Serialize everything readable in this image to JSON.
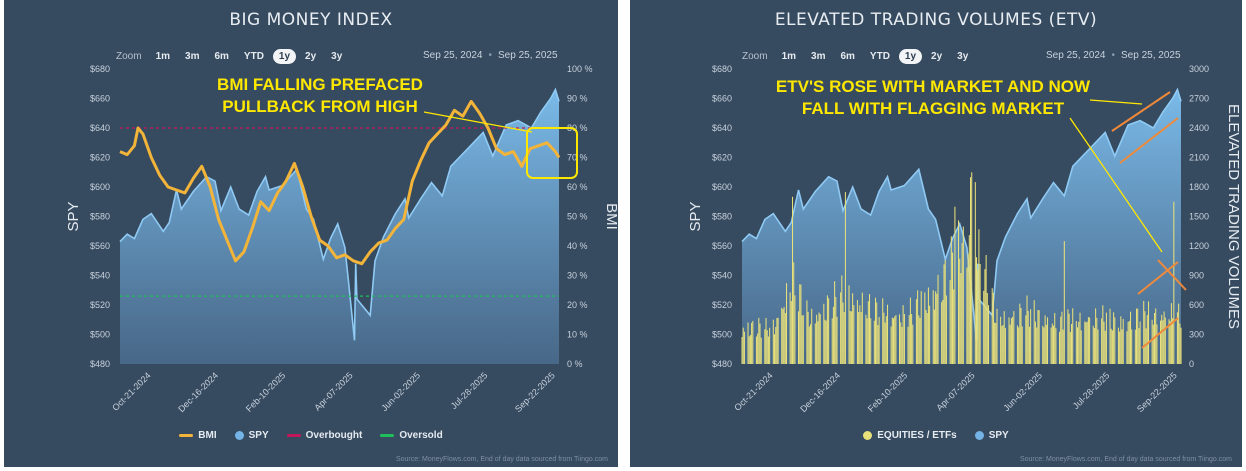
{
  "left": {
    "title": "BIG MONEY INDEX",
    "zoom": {
      "label": "Zoom",
      "buttons": [
        "1m",
        "3m",
        "6m",
        "YTD",
        "1y",
        "2y",
        "3y"
      ],
      "active": "1y"
    },
    "range": {
      "from": "Sep 25, 2024",
      "to": "Sep 25, 2025"
    },
    "annotation": {
      "line1": "BMI FALLING PREFACED",
      "line2": "PULLBACK FROM HIGH"
    },
    "legend": [
      {
        "label": "BMI",
        "color": "#f3b43a",
        "shape": "line"
      },
      {
        "label": "SPY",
        "color": "#74b3e6",
        "shape": "dot"
      },
      {
        "label": "Overbought",
        "color": "#c2185b",
        "shape": "line"
      },
      {
        "label": "Oversold",
        "color": "#1fbf5a",
        "shape": "line"
      }
    ],
    "source": "Source: MoneyFlows.com, End of day data sourced from Tiingo.com"
  },
  "right": {
    "title": "ELEVATED TRADING VOLUMES (ETV)",
    "zoom": {
      "label": "Zoom",
      "buttons": [
        "1m",
        "3m",
        "6m",
        "YTD",
        "1y",
        "2y",
        "3y"
      ],
      "active": "1y"
    },
    "range": {
      "from": "Sep 25, 2024",
      "to": "Sep 25, 2025"
    },
    "annotation": {
      "line1": "ETV'S ROSE WITH MARKET AND NOW",
      "line2": "FALL WITH FLAGGING MARKET"
    },
    "legend": [
      {
        "label": "EQUITIES / ETFs",
        "color": "#e8e07a",
        "shape": "dot"
      },
      {
        "label": "SPY",
        "color": "#74b3e6",
        "shape": "dot"
      }
    ],
    "source": "Source: MoneyFlows.com, End of day data sourced from Tiingo.com"
  },
  "chart_data": [
    {
      "type": "line",
      "title": "BIG MONEY INDEX",
      "ylabel": "SPY",
      "y2label": "BMI",
      "ylim": [
        480,
        680
      ],
      "yticks": [
        "$480",
        "$500",
        "$520",
        "$540",
        "$560",
        "$580",
        "$600",
        "$620",
        "$640",
        "$660",
        "$680"
      ],
      "y2lim": [
        0,
        100
      ],
      "y2ticks": [
        "0 %",
        "10 %",
        "20 %",
        "30 %",
        "40 %",
        "50 %",
        "60 %",
        "70 %",
        "80 %",
        "90 %",
        "100 %"
      ],
      "xtick_labels": [
        "Oct-21-2024",
        "Dec-16-2024",
        "Feb-10-2025",
        "Apr-07-2025",
        "Jun-02-2025",
        "Jul-28-2025",
        "Sep-22-2025"
      ],
      "xtick_dates": [
        "2024-10-21",
        "2024-12-16",
        "2025-02-10",
        "2025-04-07",
        "2025-06-02",
        "2025-07-28",
        "2025-09-22"
      ],
      "x_range": [
        "2024-09-25",
        "2025-09-25"
      ],
      "overbought": 80,
      "oversold": 23,
      "series": [
        {
          "name": "SPY",
          "axis": "left",
          "kind": "area",
          "points": [
            [
              "2024-09-25",
              563
            ],
            [
              "2024-10-01",
              568
            ],
            [
              "2024-10-07",
              565
            ],
            [
              "2024-10-14",
              578
            ],
            [
              "2024-10-21",
              582
            ],
            [
              "2024-10-31",
              570
            ],
            [
              "2024-11-05",
              576
            ],
            [
              "2024-11-11",
              598
            ],
            [
              "2024-11-15",
              585
            ],
            [
              "2024-11-25",
              597
            ],
            [
              "2024-12-06",
              607
            ],
            [
              "2024-12-13",
              604
            ],
            [
              "2024-12-18",
              584
            ],
            [
              "2024-12-26",
              600
            ],
            [
              "2025-01-02",
              585
            ],
            [
              "2025-01-10",
              581
            ],
            [
              "2025-01-17",
              597
            ],
            [
              "2025-01-24",
              607
            ],
            [
              "2025-01-27",
              598
            ],
            [
              "2025-02-07",
              601
            ],
            [
              "2025-02-19",
              612
            ],
            [
              "2025-02-27",
              585
            ],
            [
              "2025-03-05",
              578
            ],
            [
              "2025-03-13",
              551
            ],
            [
              "2025-03-19",
              565
            ],
            [
              "2025-03-25",
              575
            ],
            [
              "2025-03-31",
              559
            ],
            [
              "2025-04-03",
              536
            ],
            [
              "2025-04-08",
              496
            ],
            [
              "2025-04-09",
              548
            ],
            [
              "2025-04-10",
              524
            ],
            [
              "2025-04-21",
              513
            ],
            [
              "2025-04-25",
              550
            ],
            [
              "2025-05-02",
              566
            ],
            [
              "2025-05-12",
              582
            ],
            [
              "2025-05-20",
              592
            ],
            [
              "2025-05-23",
              579
            ],
            [
              "2025-06-02",
              592
            ],
            [
              "2025-06-11",
              603
            ],
            [
              "2025-06-20",
              594
            ],
            [
              "2025-06-27",
              614
            ],
            [
              "2025-07-10",
              625
            ],
            [
              "2025-07-24",
              637
            ],
            [
              "2025-08-01",
              621
            ],
            [
              "2025-08-12",
              642
            ],
            [
              "2025-08-22",
              645
            ],
            [
              "2025-09-02",
              640
            ],
            [
              "2025-09-10",
              651
            ],
            [
              "2025-09-18",
              660
            ],
            [
              "2025-09-22",
              666
            ],
            [
              "2025-09-25",
              658
            ]
          ]
        },
        {
          "name": "BMI",
          "axis": "right",
          "kind": "line",
          "points": [
            [
              "2024-09-25",
              72
            ],
            [
              "2024-10-01",
              71
            ],
            [
              "2024-10-07",
              74
            ],
            [
              "2024-10-10",
              80
            ],
            [
              "2024-10-14",
              78
            ],
            [
              "2024-10-21",
              70
            ],
            [
              "2024-10-28",
              64
            ],
            [
              "2024-11-04",
              60
            ],
            [
              "2024-11-11",
              59
            ],
            [
              "2024-11-18",
              58
            ],
            [
              "2024-11-25",
              63
            ],
            [
              "2024-12-02",
              67
            ],
            [
              "2024-12-09",
              60
            ],
            [
              "2024-12-16",
              49
            ],
            [
              "2024-12-23",
              42
            ],
            [
              "2024-12-30",
              35
            ],
            [
              "2025-01-06",
              38
            ],
            [
              "2025-01-13",
              46
            ],
            [
              "2025-01-20",
              55
            ],
            [
              "2025-01-27",
              52
            ],
            [
              "2025-02-03",
              58
            ],
            [
              "2025-02-10",
              62
            ],
            [
              "2025-02-17",
              68
            ],
            [
              "2025-02-24",
              60
            ],
            [
              "2025-03-03",
              50
            ],
            [
              "2025-03-10",
              42
            ],
            [
              "2025-03-17",
              40
            ],
            [
              "2025-03-24",
              36
            ],
            [
              "2025-03-31",
              37
            ],
            [
              "2025-04-07",
              35
            ],
            [
              "2025-04-14",
              34
            ],
            [
              "2025-04-21",
              38
            ],
            [
              "2025-04-28",
              41
            ],
            [
              "2025-05-05",
              42
            ],
            [
              "2025-05-12",
              46
            ],
            [
              "2025-05-19",
              49
            ],
            [
              "2025-05-26",
              62
            ],
            [
              "2025-06-02",
              69
            ],
            [
              "2025-06-09",
              75
            ],
            [
              "2025-06-16",
              78
            ],
            [
              "2025-06-23",
              81
            ],
            [
              "2025-06-30",
              86
            ],
            [
              "2025-07-07",
              84
            ],
            [
              "2025-07-14",
              89
            ],
            [
              "2025-07-21",
              85
            ],
            [
              "2025-07-28",
              80
            ],
            [
              "2025-08-04",
              73
            ],
            [
              "2025-08-11",
              71
            ],
            [
              "2025-08-18",
              72
            ],
            [
              "2025-08-25",
              67
            ],
            [
              "2025-09-01",
              73
            ],
            [
              "2025-09-08",
              74
            ],
            [
              "2025-09-15",
              75
            ],
            [
              "2025-09-22",
              72
            ],
            [
              "2025-09-25",
              70
            ]
          ]
        }
      ]
    },
    {
      "type": "bar",
      "title": "ELEVATED TRADING VOLUMES (ETV)",
      "ylabel": "SPY",
      "y2label": "ELEVATED TRADING VOLUMES",
      "ylim": [
        480,
        680
      ],
      "yticks": [
        "$480",
        "$500",
        "$520",
        "$540",
        "$560",
        "$580",
        "$600",
        "$620",
        "$640",
        "$660",
        "$680"
      ],
      "y2lim": [
        0,
        3000
      ],
      "y2ticks": [
        "0",
        "300",
        "600",
        "900",
        "1200",
        "1500",
        "1800",
        "2100",
        "2400",
        "2700",
        "3000"
      ],
      "xtick_labels": [
        "Oct-21-2024",
        "Dec-16-2024",
        "Feb-10-2025",
        "Apr-07-2025",
        "Jun-02-2025",
        "Jul-28-2025",
        "Sep-22-2025"
      ],
      "xtick_dates": [
        "2024-10-21",
        "2024-12-16",
        "2025-02-10",
        "2025-04-07",
        "2025-06-02",
        "2025-07-28",
        "2025-09-22"
      ],
      "x_range": [
        "2024-09-25",
        "2025-09-25"
      ],
      "series": [
        {
          "name": "SPY",
          "axis": "left",
          "kind": "area",
          "ref": "same as BIG MONEY INDEX SPY"
        },
        {
          "name": "EQUITIES / ETFs",
          "axis": "right",
          "kind": "bar",
          "profile_points": [
            [
              "2024-09-25",
              500
            ],
            [
              "2024-10-20",
              470
            ],
            [
              "2024-11-06",
              1100
            ],
            [
              "2024-11-20",
              620
            ],
            [
              "2024-12-20",
              950
            ],
            [
              "2025-01-15",
              700
            ],
            [
              "2025-02-10",
              650
            ],
            [
              "2025-03-10",
              1100
            ],
            [
              "2025-04-04",
              1800
            ],
            [
              "2025-04-10",
              1500
            ],
            [
              "2025-04-25",
              600
            ],
            [
              "2025-05-20",
              700
            ],
            [
              "2025-06-15",
              560
            ],
            [
              "2025-07-10",
              620
            ],
            [
              "2025-08-05",
              580
            ],
            [
              "2025-08-25",
              650
            ],
            [
              "2025-09-15",
              680
            ],
            [
              "2025-09-25",
              620
            ]
          ],
          "spikes": [
            [
              "2024-11-06",
              1700
            ],
            [
              "2024-12-20",
              1750
            ],
            [
              "2025-03-21",
              1600
            ],
            [
              "2025-04-03",
              1900
            ],
            [
              "2025-04-04",
              1950
            ],
            [
              "2025-04-07",
              1850
            ],
            [
              "2025-06-20",
              1250
            ],
            [
              "2025-09-19",
              1650
            ]
          ]
        }
      ]
    }
  ]
}
